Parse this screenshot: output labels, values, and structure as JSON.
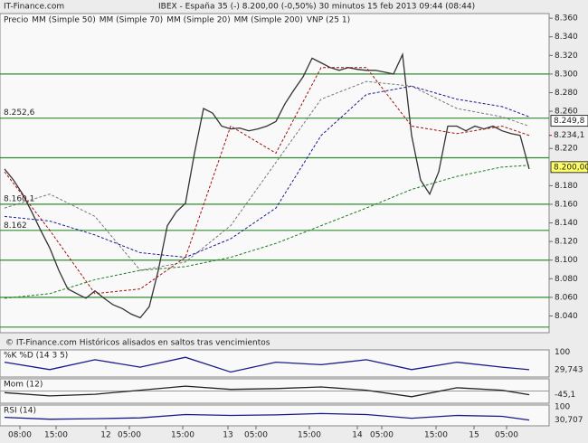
{
  "header": {
    "brand": "IT-Finance.com",
    "title": "IBEX - España 35 (-)   8.200,00 (-0,50%)   30 minutos   15 feb 2013 09:44 (08:44)",
    "footer": "© IT-Finance.com  Históricos alisados en saltos tras vencimientos"
  },
  "chart_data": {
    "type": "line",
    "legend_extra": "VNP (25 1)",
    "xlim": [
      -0.5,
      60.2
    ],
    "ylim": [
      8.022,
      8.365
    ],
    "yticks": [
      {
        "value": 8.36,
        "label": "8.360"
      },
      {
        "value": 8.34,
        "label": "8.340"
      },
      {
        "value": 8.32,
        "label": "8.320"
      },
      {
        "value": 8.3,
        "label": "8.300"
      },
      {
        "value": 8.28,
        "label": "8.280"
      },
      {
        "value": 8.26,
        "label": "8.260"
      },
      {
        "value": 8.22,
        "label": "8.220"
      },
      {
        "value": 8.18,
        "label": "8.180"
      },
      {
        "value": 8.16,
        "label": "8.160"
      },
      {
        "value": 8.14,
        "label": "8.140"
      },
      {
        "value": 8.12,
        "label": "8.120"
      },
      {
        "value": 8.1,
        "label": "8.100"
      },
      {
        "value": 8.08,
        "label": "8.080"
      },
      {
        "value": 8.06,
        "label": "8.060"
      },
      {
        "value": 8.04,
        "label": "8.040"
      }
    ],
    "xticks": [
      {
        "value": 1.7,
        "label": "08:00"
      },
      {
        "value": 5.7,
        "label": "15:00"
      },
      {
        "value": 11.2,
        "label": "12"
      },
      {
        "value": 13.8,
        "label": "05:00"
      },
      {
        "value": 19.7,
        "label": "15:00"
      },
      {
        "value": 24.7,
        "label": "13"
      },
      {
        "value": 27.8,
        "label": "05:00"
      },
      {
        "value": 33.7,
        "label": "15:00"
      },
      {
        "value": 39,
        "label": "14"
      },
      {
        "value": 41.7,
        "label": "05:00"
      },
      {
        "value": 47.7,
        "label": "15:00"
      },
      {
        "value": 51.9,
        "label": "15"
      },
      {
        "value": 55.5,
        "label": "05:00"
      }
    ],
    "levels": [
      {
        "value": 8.3,
        "label": null
      },
      {
        "value": 8.2526,
        "label": "8.252,6"
      },
      {
        "value": 8.21,
        "label": null
      },
      {
        "value": 8.1601,
        "label": "8.160,1"
      },
      {
        "value": 8.132,
        "label": null
      },
      {
        "value": 8.1,
        "label": null
      },
      {
        "value": 8.06,
        "label": null
      },
      {
        "value": 8.028,
        "label": null
      }
    ],
    "level_color": "#2f8a2f",
    "annotations": [
      {
        "text": "8.162",
        "y": 8.137
      }
    ],
    "markers": [
      {
        "value": 8.2498,
        "label": "8.249,8",
        "color": "#ffffff"
      },
      {
        "value": 8.2341,
        "label": "8.234,1",
        "color": "#cc0000"
      },
      {
        "value": 8.2,
        "label": "8.200,00",
        "color": "#ffff66"
      }
    ],
    "series": [
      {
        "name": "Precio",
        "color": "#333333",
        "style": "solid",
        "x": [
          0,
          1,
          2,
          3,
          4,
          5,
          6,
          7,
          8,
          9,
          10,
          11,
          12,
          13,
          14,
          15,
          16,
          17,
          18,
          19,
          20,
          21,
          22,
          23,
          24,
          25,
          26,
          27,
          28,
          29,
          30,
          31,
          32,
          33,
          34,
          35,
          36,
          37,
          38,
          39,
          40,
          41,
          42,
          43,
          44,
          45,
          46,
          47,
          48,
          49,
          50,
          51,
          52,
          53,
          54,
          55,
          56,
          57,
          58
        ],
        "values": [
          8.198,
          8.186,
          8.171,
          8.152,
          8.132,
          8.113,
          8.089,
          8.069,
          8.064,
          8.059,
          8.067,
          8.059,
          8.052,
          8.048,
          8.042,
          8.038,
          8.05,
          8.089,
          8.137,
          8.152,
          8.161,
          8.215,
          8.263,
          8.258,
          8.244,
          8.241,
          8.242,
          8.239,
          8.241,
          8.244,
          8.249,
          8.268,
          8.283,
          8.297,
          8.317,
          8.312,
          8.307,
          8.304,
          8.307,
          8.305,
          8.304,
          8.304,
          8.302,
          8.3,
          8.321,
          8.234,
          8.186,
          8.171,
          8.195,
          8.244,
          8.244,
          8.239,
          8.244,
          8.241,
          8.244,
          8.239,
          8.236,
          8.234,
          8.198
        ]
      },
      {
        "name": "MM (Simple 50)",
        "color": "#777777",
        "style": "dash",
        "x": [
          0,
          5,
          10,
          15,
          20,
          25,
          30,
          35,
          40,
          45,
          50,
          55,
          58
        ],
        "values": [
          8.156,
          8.171,
          8.147,
          8.089,
          8.098,
          8.137,
          8.205,
          8.273,
          8.292,
          8.287,
          8.263,
          8.254,
          8.244
        ]
      },
      {
        "name": "MM (Simple 70)",
        "color": "#1a1a8c",
        "style": "dash",
        "x": [
          0,
          5,
          10,
          15,
          20,
          25,
          30,
          35,
          40,
          45,
          50,
          55,
          58
        ],
        "values": [
          8.147,
          8.142,
          8.127,
          8.108,
          8.103,
          8.123,
          8.156,
          8.234,
          8.278,
          8.287,
          8.273,
          8.265,
          8.254
        ]
      },
      {
        "name": "MM (Simple 20)",
        "color": "#a01010",
        "style": "dash",
        "x": [
          0,
          5,
          10,
          15,
          20,
          25,
          30,
          35,
          40,
          45,
          50,
          55,
          58
        ],
        "values": [
          8.195,
          8.132,
          8.064,
          8.069,
          8.103,
          8.244,
          8.215,
          8.307,
          8.307,
          8.244,
          8.236,
          8.244,
          8.234
        ]
      },
      {
        "name": "MM (Simple 200)",
        "color": "#1e7a1e",
        "style": "dash",
        "x": [
          0,
          5,
          10,
          15,
          20,
          25,
          30,
          35,
          40,
          45,
          50,
          55,
          58
        ],
        "values": [
          8.059,
          8.064,
          8.079,
          8.089,
          8.093,
          8.103,
          8.118,
          8.137,
          8.156,
          8.176,
          8.19,
          8.2,
          8.202
        ]
      }
    ],
    "indicators": [
      {
        "title": "%K %D (14 3 5)",
        "ylim": [
          0,
          110
        ],
        "yticks": [
          100
        ],
        "color": "#1a1a8c",
        "last_label": "29,743",
        "x": [
          0,
          5,
          10,
          15,
          20,
          25,
          30,
          35,
          40,
          45,
          50,
          55,
          58
        ],
        "values": [
          60,
          30,
          70,
          40,
          80,
          20,
          60,
          50,
          70,
          30,
          60,
          40,
          29.743
        ]
      },
      {
        "title": "Mom (12)",
        "ylim": [
          -150,
          150
        ],
        "yticks": [],
        "color": "#222222",
        "last_label": "-45,1",
        "x": [
          0,
          5,
          10,
          15,
          20,
          25,
          30,
          35,
          40,
          45,
          50,
          55,
          58
        ],
        "values": [
          -20,
          -60,
          -40,
          10,
          60,
          20,
          30,
          50,
          10,
          -70,
          40,
          10,
          -45.1
        ]
      },
      {
        "title": "RSI (14)",
        "ylim": [
          0,
          110
        ],
        "yticks": [
          100
        ],
        "color": "#1a1a8c",
        "last_label": "30,707",
        "x": [
          0,
          5,
          10,
          15,
          20,
          25,
          30,
          35,
          40,
          45,
          50,
          55,
          58
        ],
        "values": [
          45,
          35,
          38,
          42,
          60,
          55,
          58,
          65,
          60,
          40,
          55,
          50,
          30.707
        ]
      }
    ]
  }
}
